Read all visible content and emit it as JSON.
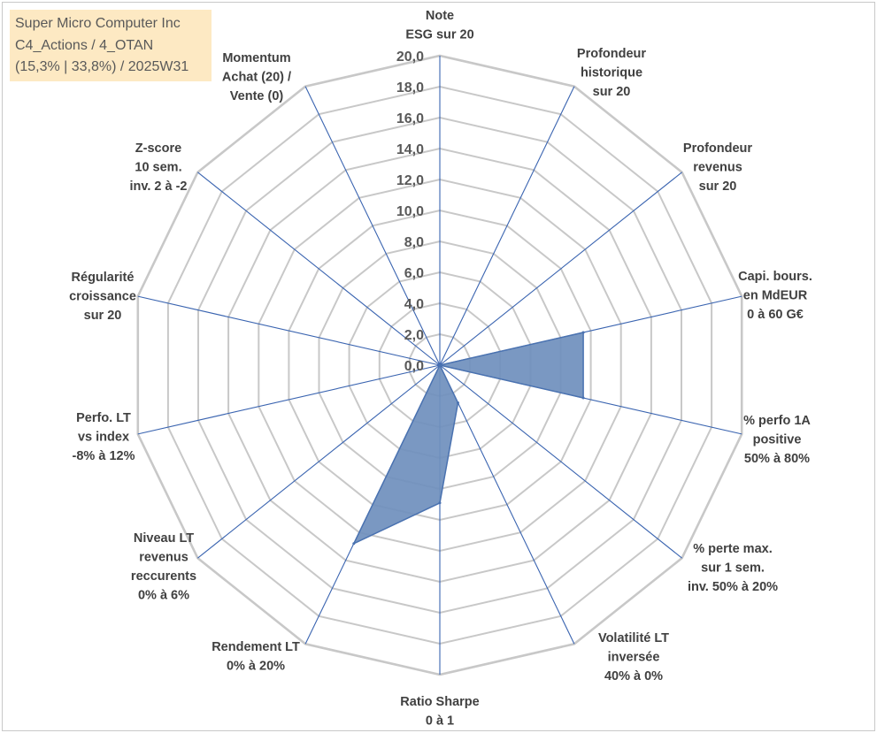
{
  "info_box": {
    "line1": "Super Micro Computer Inc",
    "line2": "C4_Actions / 4_OTAN",
    "line3": "(15,3% | 33,8%) / 2025W31"
  },
  "chart_data": {
    "type": "radar",
    "r_range": [
      0,
      20
    ],
    "tick_step": 2,
    "tick_labels": [
      "0,0",
      "2,0",
      "4,0",
      "6,0",
      "8,0",
      "10,0",
      "12,0",
      "14,0",
      "16,0",
      "18,0",
      "20,0"
    ],
    "grid": true,
    "colors": {
      "fill": "#6f8fbd",
      "stroke": "#4a72b0",
      "spoke": "#3a64b0",
      "grid": "#c8c8c8"
    },
    "axes": [
      {
        "lines": [
          "Note",
          "ESG sur 20"
        ]
      },
      {
        "lines": [
          "Profondeur",
          "historique",
          "sur 20"
        ]
      },
      {
        "lines": [
          "Profondeur",
          "revenus",
          "sur 20"
        ]
      },
      {
        "lines": [
          "Capi. bours.",
          "en MdEUR",
          "0 à 60 G€"
        ]
      },
      {
        "lines": [
          "% perfo 1A",
          "positive",
          "50% à 80%"
        ]
      },
      {
        "lines": [
          "% perte max.",
          "sur 1 sem.",
          "inv. 50% à 20%"
        ]
      },
      {
        "lines": [
          "Volatilité LT",
          "inversée",
          "40% à 0%"
        ]
      },
      {
        "lines": [
          "Ratio Sharpe",
          "0 à 1"
        ]
      },
      {
        "lines": [
          "Rendement LT",
          "0% à 20%"
        ]
      },
      {
        "lines": [
          "Niveau LT",
          "revenus",
          "reccurents",
          "0% à 6%"
        ]
      },
      {
        "lines": [
          "Perfo. LT",
          "vs index",
          "-8% à 12%"
        ]
      },
      {
        "lines": [
          "Régularité",
          "croissance",
          "sur 20"
        ]
      },
      {
        "lines": [
          "Z-score",
          "10 sem.",
          "inv. 2 à -2"
        ]
      },
      {
        "lines": [
          "Momentum",
          "Achat (20) /",
          "Vente (0)"
        ]
      }
    ],
    "series": [
      {
        "values": [
          0,
          0,
          0,
          9.5,
          9.5,
          0,
          2.7,
          8.9,
          12.8,
          0,
          0,
          0,
          0,
          0
        ]
      }
    ]
  }
}
